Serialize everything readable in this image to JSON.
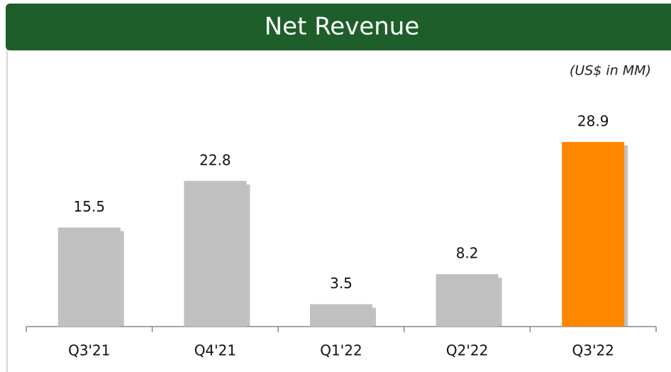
{
  "chart_data": {
    "type": "bar",
    "title": "Net Revenue",
    "subtitle": "(US$ in MM)",
    "categories": [
      "Q3'21",
      "Q4'21",
      "Q1'22",
      "Q2'22",
      "Q3'22"
    ],
    "values": [
      15.5,
      22.8,
      3.5,
      8.2,
      28.9
    ],
    "colors": [
      "#c0c0c0",
      "#c0c0c0",
      "#c0c0c0",
      "#c0c0c0",
      "#ff8800"
    ],
    "ylim": [
      0,
      32
    ]
  }
}
